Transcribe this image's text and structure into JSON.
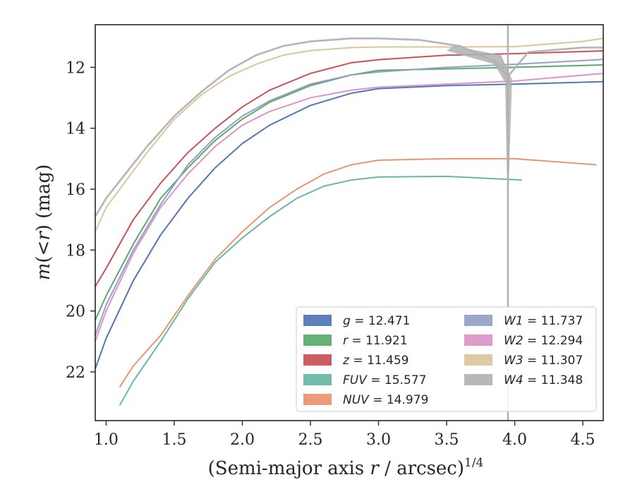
{
  "chart_data": {
    "type": "line",
    "xlabel_main": "(Semi-major axis ",
    "xlabel_var": "r",
    "xlabel_unit": " / arcsec)",
    "xlabel_exp": "1/4",
    "ylabel_m": "m",
    "ylabel_lt": "(<",
    "ylabel_r": "r",
    "ylabel_close": ") (mag)",
    "xlim": [
      0.92,
      4.65
    ],
    "ylim": [
      23.6,
      10.6
    ],
    "y_inverted": true,
    "x_ticks": [
      1.0,
      1.5,
      2.0,
      2.5,
      3.0,
      3.5,
      4.0,
      4.5
    ],
    "x_tick_labels": [
      "1.0",
      "1.5",
      "2.0",
      "2.5",
      "3.0",
      "3.5",
      "4.0",
      "4.5"
    ],
    "y_ticks": [
      12,
      14,
      16,
      18,
      20,
      22
    ],
    "y_tick_labels": [
      "12",
      "14",
      "16",
      "18",
      "20",
      "22"
    ],
    "legend_position": "lower-right",
    "series": [
      {
        "name": "g",
        "value": "12.471",
        "color": "#4c72b0",
        "x": [
          0.92,
          1.0,
          1.2,
          1.4,
          1.6,
          1.8,
          2.0,
          2.2,
          2.5,
          2.8,
          3.0,
          3.5,
          4.0,
          4.65
        ],
        "y": [
          21.9,
          20.9,
          19.0,
          17.5,
          16.3,
          15.3,
          14.5,
          13.9,
          13.25,
          12.85,
          12.7,
          12.6,
          12.55,
          12.47
        ]
      },
      {
        "name": "r",
        "value": "11.921",
        "color": "#55a868",
        "x": [
          0.92,
          1.0,
          1.2,
          1.4,
          1.6,
          1.8,
          2.0,
          2.2,
          2.5,
          2.8,
          3.0,
          3.5,
          4.0,
          4.65
        ],
        "y": [
          20.3,
          19.5,
          17.8,
          16.3,
          15.3,
          14.4,
          13.7,
          13.15,
          12.6,
          12.25,
          12.1,
          12.05,
          12.0,
          11.92
        ]
      },
      {
        "name": "z",
        "value": "11.459",
        "color": "#c44e52",
        "x": [
          0.92,
          1.0,
          1.2,
          1.4,
          1.6,
          1.8,
          2.0,
          2.2,
          2.5,
          2.8,
          3.0,
          3.5,
          4.0,
          4.65
        ],
        "y": [
          19.2,
          18.6,
          17.0,
          15.8,
          14.8,
          14.0,
          13.3,
          12.75,
          12.2,
          11.85,
          11.75,
          11.6,
          11.55,
          11.46
        ]
      },
      {
        "name": "FUV",
        "value": "15.577",
        "color": "#64b5a0",
        "x": [
          1.1,
          1.2,
          1.4,
          1.6,
          1.8,
          2.0,
          2.2,
          2.4,
          2.6,
          2.8,
          3.0,
          3.5,
          4.05
        ],
        "y": [
          23.1,
          22.3,
          21.0,
          19.6,
          18.4,
          17.6,
          16.9,
          16.3,
          15.9,
          15.7,
          15.6,
          15.58,
          15.7
        ]
      },
      {
        "name": "NUV",
        "value": "14.979",
        "color": "#e8916d",
        "x": [
          1.1,
          1.2,
          1.4,
          1.6,
          1.8,
          2.0,
          2.2,
          2.4,
          2.6,
          2.8,
          3.0,
          3.5,
          4.0,
          4.6
        ],
        "y": [
          22.5,
          21.8,
          20.8,
          19.5,
          18.3,
          17.4,
          16.6,
          16.0,
          15.5,
          15.2,
          15.05,
          15.0,
          15.0,
          15.2
        ]
      },
      {
        "name": "W1",
        "value": "11.737",
        "color": "#8f9fc4",
        "x": [
          0.92,
          1.0,
          1.2,
          1.4,
          1.6,
          1.8,
          2.0,
          2.2,
          2.5,
          2.8,
          3.0,
          3.5,
          4.0,
          4.65
        ],
        "y": [
          20.8,
          19.8,
          18.0,
          16.5,
          15.2,
          14.3,
          13.6,
          13.1,
          12.55,
          12.25,
          12.15,
          12.0,
          11.9,
          11.74
        ]
      },
      {
        "name": "W2",
        "value": "12.294",
        "color": "#dd8fc6",
        "x": [
          0.92,
          1.0,
          1.2,
          1.4,
          1.6,
          1.8,
          2.0,
          2.2,
          2.5,
          2.8,
          3.0,
          3.5,
          4.0,
          4.65
        ],
        "y": [
          21.0,
          20.0,
          18.1,
          16.6,
          15.5,
          14.6,
          13.9,
          13.45,
          13.0,
          12.75,
          12.65,
          12.55,
          12.45,
          12.2
        ]
      },
      {
        "name": "W3",
        "value": "11.307",
        "color": "#dcc29a",
        "x": [
          0.92,
          1.0,
          1.3,
          1.5,
          1.7,
          1.9,
          2.1,
          2.3,
          2.5,
          2.8,
          3.0,
          3.5,
          4.0,
          4.5,
          4.65
        ],
        "y": [
          17.4,
          16.6,
          14.8,
          13.7,
          12.9,
          12.3,
          11.9,
          11.6,
          11.45,
          11.35,
          11.33,
          11.33,
          11.32,
          11.15,
          11.05
        ]
      },
      {
        "name": "W4",
        "value": "11.348",
        "color": "#b0b0b0",
        "x": [
          0.92,
          1.0,
          1.3,
          1.5,
          1.7,
          1.9,
          2.1,
          2.3,
          2.5,
          2.8,
          3.0,
          3.3,
          3.6,
          3.85,
          3.95,
          4.1,
          4.5,
          4.65
        ],
        "y": [
          16.9,
          16.3,
          14.6,
          13.6,
          12.8,
          12.1,
          11.6,
          11.3,
          11.15,
          11.05,
          11.05,
          11.1,
          11.3,
          11.8,
          12.3,
          11.5,
          11.35,
          11.35
        ]
      }
    ]
  }
}
